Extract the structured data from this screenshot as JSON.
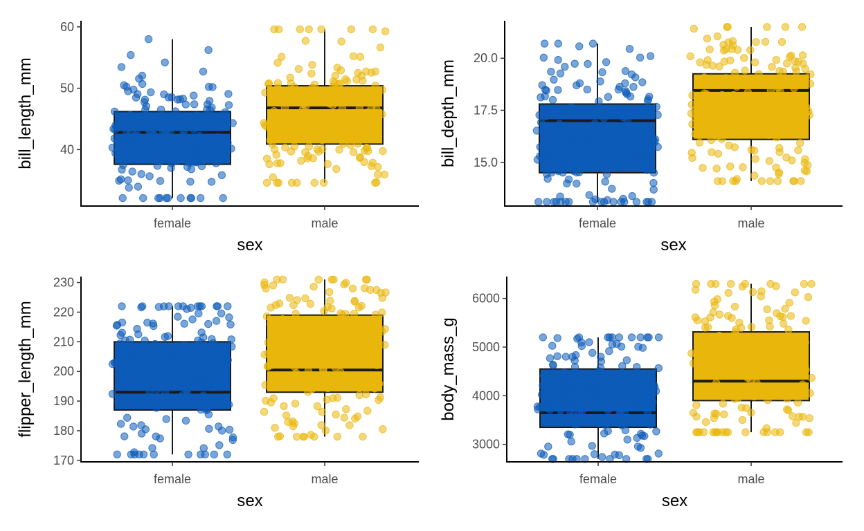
{
  "colors": {
    "female": "#0C5BB8",
    "male": "#E9B70B"
  },
  "chart_data": [
    {
      "type": "box",
      "xlabel": "sex",
      "ylabel": "bill_length_mm",
      "categories": [
        "female",
        "male"
      ],
      "ylim": [
        30.8,
        61
      ],
      "yticks": [
        40,
        50,
        60
      ],
      "stats": [
        {
          "category": "female",
          "min": 32.1,
          "q1": 37.6,
          "median": 42.8,
          "q3": 46.2,
          "max": 58.0
        },
        {
          "category": "male",
          "min": 34.6,
          "q1": 40.9,
          "median": 46.8,
          "q3": 50.4,
          "max": 59.6
        }
      ],
      "n_points": [
        165,
        168
      ]
    },
    {
      "type": "box",
      "xlabel": "sex",
      "ylabel": "bill_depth_mm",
      "categories": [
        "female",
        "male"
      ],
      "ylim": [
        12.9,
        21.8
      ],
      "yticks": [
        15.0,
        17.5,
        20.0
      ],
      "tick_labels": [
        "15.0",
        "17.5",
        "20.0"
      ],
      "stats": [
        {
          "category": "female",
          "min": 13.1,
          "q1": 14.5,
          "median": 17.0,
          "q3": 17.8,
          "max": 20.7
        },
        {
          "category": "male",
          "min": 14.1,
          "q1": 16.1,
          "median": 18.45,
          "q3": 19.25,
          "max": 21.5
        }
      ],
      "n_points": [
        165,
        168
      ]
    },
    {
      "type": "box",
      "xlabel": "sex",
      "ylabel": "flipper_length_mm",
      "categories": [
        "female",
        "male"
      ],
      "ylim": [
        169.5,
        232
      ],
      "yticks": [
        170,
        180,
        190,
        200,
        210,
        220,
        230
      ],
      "stats": [
        {
          "category": "female",
          "min": 172,
          "q1": 187,
          "median": 193,
          "q3": 210,
          "max": 222
        },
        {
          "category": "male",
          "min": 178,
          "q1": 193,
          "median": 200.5,
          "q3": 219,
          "max": 231
        }
      ],
      "n_points": [
        165,
        168
      ]
    },
    {
      "type": "box",
      "xlabel": "sex",
      "ylabel": "body_mass_g",
      "categories": [
        "female",
        "male"
      ],
      "ylim": [
        2640,
        6450
      ],
      "yticks": [
        3000,
        4000,
        5000,
        6000
      ],
      "stats": [
        {
          "category": "female",
          "min": 2700,
          "q1": 3350,
          "median": 3650,
          "q3": 4550,
          "max": 5200
        },
        {
          "category": "male",
          "min": 3250,
          "q1": 3900,
          "median": 4300,
          "q3": 5312,
          "max": 6300
        }
      ],
      "n_points": [
        165,
        168
      ]
    }
  ]
}
